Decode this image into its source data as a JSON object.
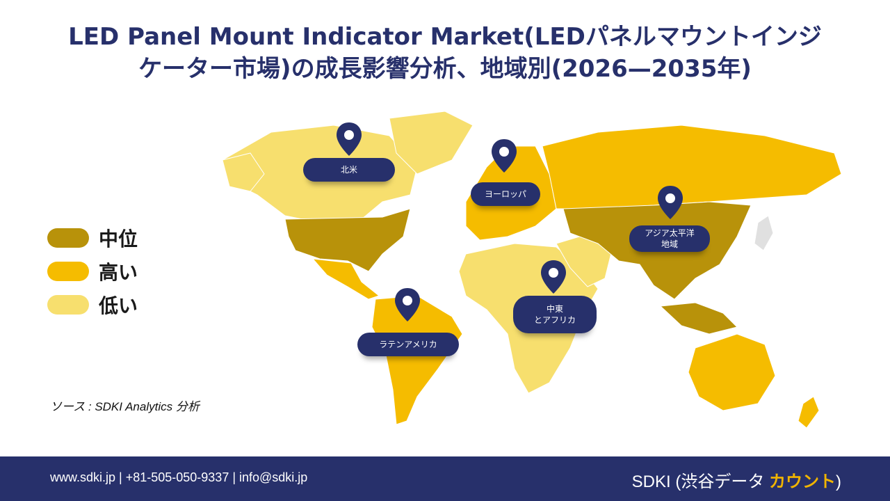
{
  "title": {
    "line1": "LED Panel Mount Indicator Market(LEDパネルマウントインジ",
    "line2": "ケーター市場)の成長影響分析、地域別(2026—2035年)"
  },
  "legend": [
    {
      "label": "中位",
      "color": "#b8920a"
    },
    {
      "label": "高い",
      "color": "#f5bc00"
    },
    {
      "label": "低い",
      "color": "#f7df6e"
    }
  ],
  "regions": {
    "north_america": "北米",
    "europe": "ヨーロッパ",
    "asia_pacific_line1": "アジア太平洋",
    "asia_pacific_line2": "地域",
    "mea_line1": "中東",
    "mea_line2": "とアフリカ",
    "latin_america": "ラテンアメリカ"
  },
  "source": "ソース : SDKI Analytics 分析",
  "footer": {
    "contact": "www.sdki.jp  | +81-505-050-9337 | info@sdki.jp",
    "brand_prefix": "SDKI (渋谷データ ",
    "brand_accent": "カウント",
    "brand_suffix": ")"
  },
  "colors": {
    "navy": "#27306b",
    "medium": "#b8920a",
    "high": "#f5bc00",
    "low": "#f7df6e"
  }
}
